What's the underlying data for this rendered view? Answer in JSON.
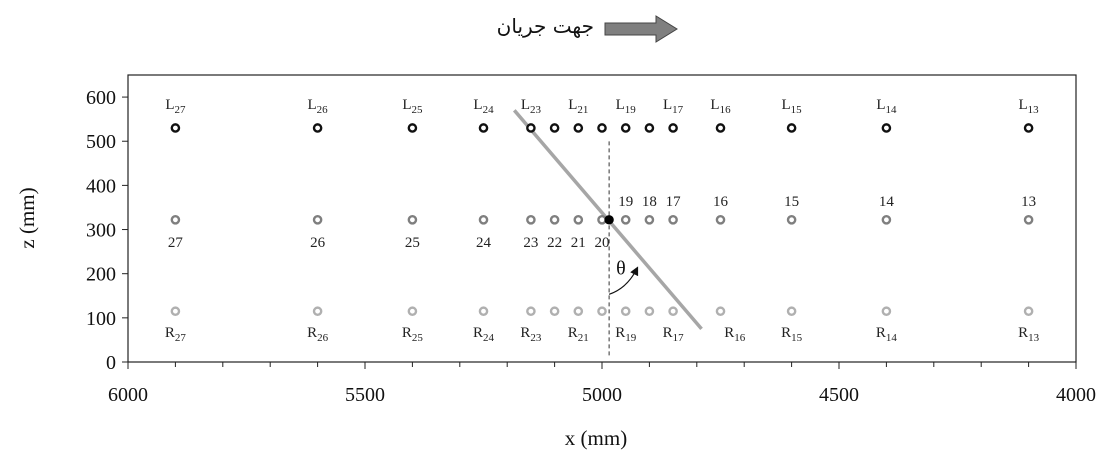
{
  "flow_direction_label": "جهت جریان",
  "chart_data": {
    "type": "scatter",
    "title": "",
    "xlabel": "x (mm)",
    "ylabel": "z (mm)",
    "xlim": [
      6000,
      4000
    ],
    "ylim": [
      0,
      650
    ],
    "x_reversed": true,
    "x_ticks": [
      6000,
      5500,
      5000,
      4500,
      4000
    ],
    "y_ticks": [
      0,
      100,
      200,
      300,
      400,
      500,
      600
    ],
    "grid": false,
    "legend": "none",
    "series": [
      {
        "row": "L",
        "color": "#111111",
        "points": [
          {
            "x": 5900,
            "z": 530,
            "prefix": "L",
            "sub": "27"
          },
          {
            "x": 5600,
            "z": 530,
            "prefix": "L",
            "sub": "26"
          },
          {
            "x": 5400,
            "z": 530,
            "prefix": "L",
            "sub": "25"
          },
          {
            "x": 5250,
            "z": 530,
            "prefix": "L",
            "sub": "24"
          },
          {
            "x": 5150,
            "z": 530,
            "prefix": "L",
            "sub": "23"
          },
          {
            "x": 5100,
            "z": 530,
            "prefix": "",
            "sub": ""
          },
          {
            "x": 5050,
            "z": 530,
            "prefix": "L",
            "sub": "21"
          },
          {
            "x": 5000,
            "z": 530,
            "prefix": "",
            "sub": ""
          },
          {
            "x": 4950,
            "z": 530,
            "prefix": "L",
            "sub": "19"
          },
          {
            "x": 4900,
            "z": 530,
            "prefix": "",
            "sub": ""
          },
          {
            "x": 4850,
            "z": 530,
            "prefix": "L",
            "sub": "17"
          },
          {
            "x": 4750,
            "z": 530,
            "prefix": "L",
            "sub": "16"
          },
          {
            "x": 4600,
            "z": 530,
            "prefix": "L",
            "sub": "15"
          },
          {
            "x": 4400,
            "z": 530,
            "prefix": "L",
            "sub": "14"
          },
          {
            "x": 4100,
            "z": 530,
            "prefix": "L",
            "sub": "13"
          }
        ]
      },
      {
        "row": "M",
        "color": "#7f7f7f",
        "points": [
          {
            "x": 5900,
            "z": 322,
            "label": "27",
            "pos": "below"
          },
          {
            "x": 5600,
            "z": 322,
            "label": "26",
            "pos": "below"
          },
          {
            "x": 5400,
            "z": 322,
            "label": "25",
            "pos": "below"
          },
          {
            "x": 5250,
            "z": 322,
            "label": "24",
            "pos": "below"
          },
          {
            "x": 5150,
            "z": 322,
            "label": "23",
            "pos": "below"
          },
          {
            "x": 5100,
            "z": 322,
            "label": "22",
            "pos": "below"
          },
          {
            "x": 5050,
            "z": 322,
            "label": "21",
            "pos": "below"
          },
          {
            "x": 5000,
            "z": 322,
            "label": "20",
            "pos": "below"
          },
          {
            "x": 4950,
            "z": 322,
            "label": "19",
            "pos": "above"
          },
          {
            "x": 4900,
            "z": 322,
            "label": "18",
            "pos": "above"
          },
          {
            "x": 4850,
            "z": 322,
            "label": "17",
            "pos": "above"
          },
          {
            "x": 4750,
            "z": 322,
            "label": "16",
            "pos": "above"
          },
          {
            "x": 4600,
            "z": 322,
            "label": "15",
            "pos": "above"
          },
          {
            "x": 4400,
            "z": 322,
            "label": "14",
            "pos": "above"
          },
          {
            "x": 4100,
            "z": 322,
            "label": "13",
            "pos": "above"
          }
        ]
      },
      {
        "row": "R",
        "color": "#b0b0b0",
        "points": [
          {
            "x": 5900,
            "z": 115,
            "prefix": "R",
            "sub": "27"
          },
          {
            "x": 5600,
            "z": 115,
            "prefix": "R",
            "sub": "26"
          },
          {
            "x": 5400,
            "z": 115,
            "prefix": "R",
            "sub": "25"
          },
          {
            "x": 5250,
            "z": 115,
            "prefix": "R",
            "sub": "24"
          },
          {
            "x": 5150,
            "z": 115,
            "prefix": "R",
            "sub": "23"
          },
          {
            "x": 5100,
            "z": 115,
            "prefix": "",
            "sub": ""
          },
          {
            "x": 5050,
            "z": 115,
            "prefix": "R",
            "sub": "21"
          },
          {
            "x": 5000,
            "z": 115,
            "prefix": "",
            "sub": ""
          },
          {
            "x": 4950,
            "z": 115,
            "prefix": "R",
            "sub": "19"
          },
          {
            "x": 4900,
            "z": 115,
            "prefix": "",
            "sub": ""
          },
          {
            "x": 4850,
            "z": 115,
            "prefix": "R",
            "sub": "17"
          },
          {
            "x": 4750,
            "z": 115,
            "prefix": "",
            "sub": ""
          },
          {
            "x": 4600,
            "z": 115,
            "prefix": "R",
            "sub": "15"
          },
          {
            "x": 4400,
            "z": 115,
            "prefix": "R",
            "sub": "14"
          },
          {
            "x": 4100,
            "z": 115,
            "prefix": "R",
            "sub": "13"
          }
        ]
      }
    ],
    "pier_point": {
      "x": 4985,
      "z": 322,
      "color": "#000000"
    },
    "pier_axis_line": {
      "x1": 5185,
      "z1": 570,
      "x2": 4790,
      "z2": 75,
      "color": "#a6a6a6"
    },
    "reference_line": {
      "x": 4985,
      "z1": 15,
      "z2": 505,
      "style": "dashed"
    },
    "angle_label": "θ",
    "extra_labels": [
      {
        "x": 4720,
        "z": 115,
        "prefix": "R",
        "sub": "16",
        "ref": "pier_end"
      }
    ]
  }
}
